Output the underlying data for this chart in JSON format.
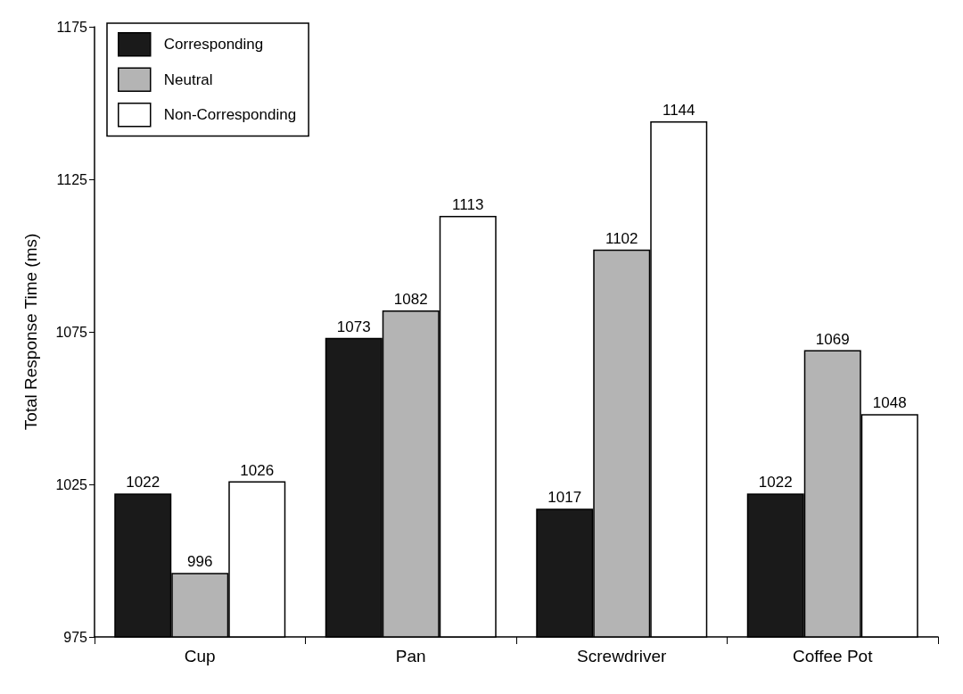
{
  "chart_data": {
    "type": "bar",
    "ylabel": "Total Response Time (ms)",
    "categories": [
      "Cup",
      "Pan",
      "Screwdriver",
      "Coffee Pot"
    ],
    "series": [
      {
        "name": "Corresponding",
        "color": "#1a1a1a",
        "values": [
          1022,
          1073,
          1017,
          1022
        ]
      },
      {
        "name": "Neutral",
        "color": "#b4b4b4",
        "values": [
          996,
          1082,
          1102,
          1069
        ]
      },
      {
        "name": "Non-Corresponding",
        "color": "#ffffff",
        "values": [
          1026,
          1113,
          1144,
          1048
        ]
      }
    ],
    "ylim": [
      975,
      1175
    ],
    "yticks": [
      975,
      1025,
      1075,
      1125,
      1175
    ],
    "grid": false,
    "legend": "top left",
    "data_labels": true
  }
}
